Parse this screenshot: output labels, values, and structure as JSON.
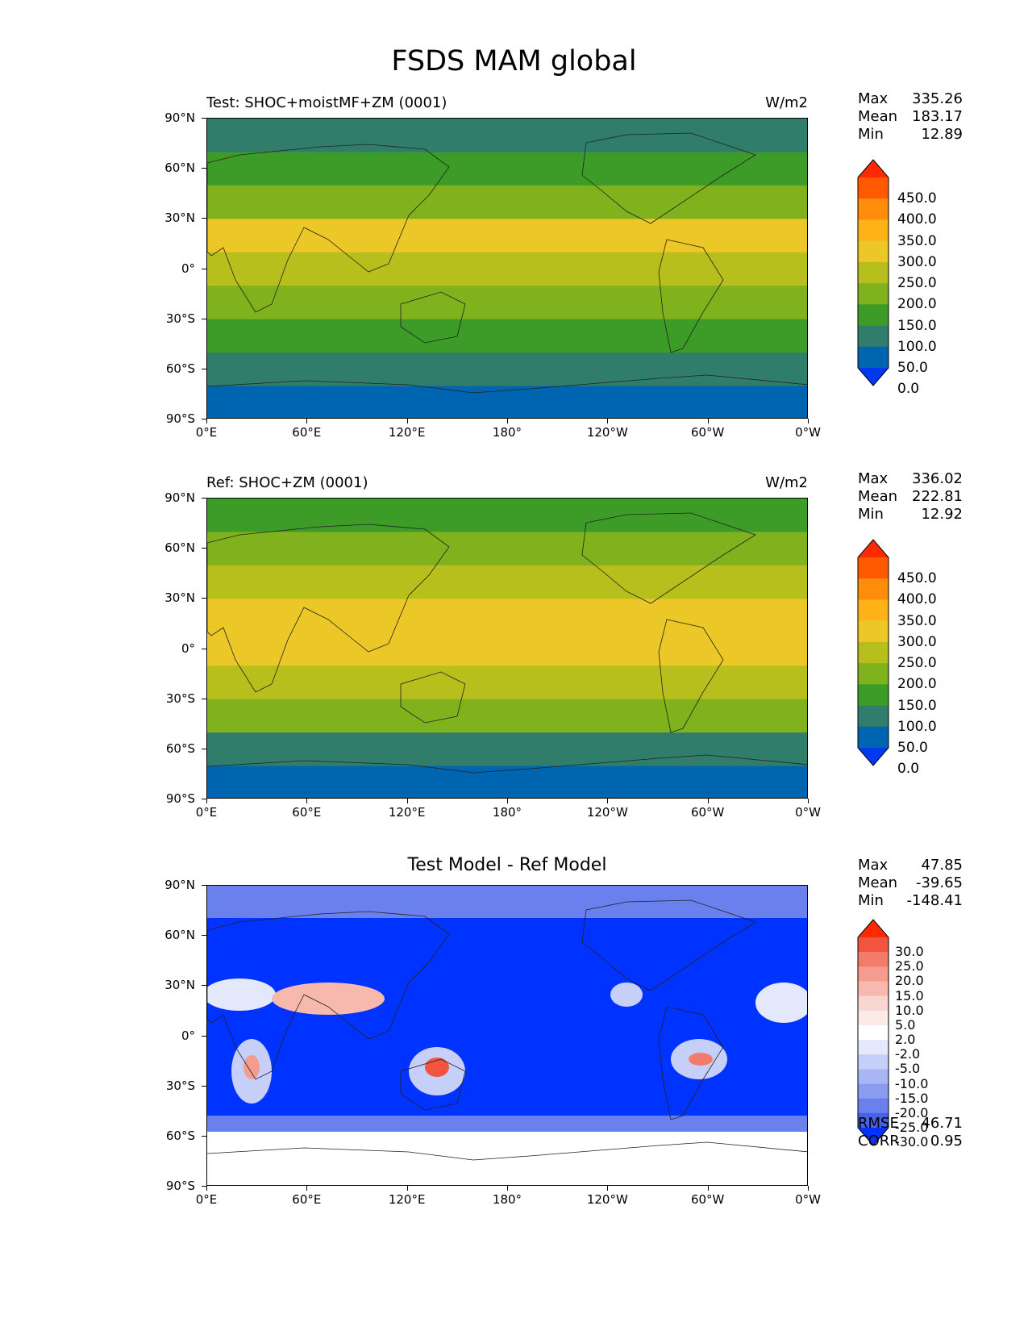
{
  "title": "FSDS MAM global",
  "axes": {
    "lat_ticks": [
      "90°N",
      "60°N",
      "30°N",
      "0°",
      "30°S",
      "60°S",
      "90°S"
    ],
    "lon_ticks": [
      "0°E",
      "60°E",
      "120°E",
      "180°",
      "120°W",
      "60°W",
      "0°W"
    ]
  },
  "panels": [
    {
      "title_left": "Test: SHOC+moistMF+ZM (0001)",
      "title_right": "W/m2",
      "stats": [
        {
          "label": "Max",
          "value": "335.26"
        },
        {
          "label": "Mean",
          "value": "183.17"
        },
        {
          "label": "Min",
          "value": "12.89"
        }
      ],
      "colorbar": {
        "levels": [
          "450.0",
          "400.0",
          "350.0",
          "300.0",
          "250.0",
          "200.0",
          "150.0",
          "100.0",
          "50.0",
          "0.0"
        ],
        "colors": [
          "#ff2a00",
          "#ff5a00",
          "#ff8c0a",
          "#ffb319",
          "#ebc827",
          "#b7bf1c",
          "#7fb21c",
          "#3d9c27",
          "#2f7d6a",
          "#0065b0",
          "#0038f0"
        ]
      },
      "bands": [
        "#2f7d6a",
        "#3d9c27",
        "#7fb21c",
        "#ebc827",
        "#b7bf1c",
        "#7fb21c",
        "#3d9c27",
        "#2f7d6a",
        "#0065b0"
      ]
    },
    {
      "title_left": "Ref: SHOC+ZM (0001)",
      "title_right": "W/m2",
      "stats": [
        {
          "label": "Max",
          "value": "336.02"
        },
        {
          "label": "Mean",
          "value": "222.81"
        },
        {
          "label": "Min",
          "value": "12.92"
        }
      ],
      "colorbar": {
        "levels": [
          "450.0",
          "400.0",
          "350.0",
          "300.0",
          "250.0",
          "200.0",
          "150.0",
          "100.0",
          "50.0",
          "0.0"
        ],
        "colors": [
          "#ff2a00",
          "#ff5a00",
          "#ff8c0a",
          "#ffb319",
          "#ebc827",
          "#b7bf1c",
          "#7fb21c",
          "#3d9c27",
          "#2f7d6a",
          "#0065b0",
          "#0038f0"
        ]
      },
      "bands": [
        "#3d9c27",
        "#7fb21c",
        "#b7bf1c",
        "#ebc827",
        "#ebc827",
        "#b7bf1c",
        "#7fb21c",
        "#2f7d6a",
        "#0065b0"
      ]
    },
    {
      "title_center": "Test Model - Ref Model",
      "stats": [
        {
          "label": "Max",
          "value": "47.85"
        },
        {
          "label": "Mean",
          "value": "-39.65"
        },
        {
          "label": "Min",
          "value": "-148.41"
        }
      ],
      "colorbar": {
        "levels": [
          "30.0",
          "25.0",
          "20.0",
          "15.0",
          "10.0",
          "5.0",
          "2.0",
          "-2.0",
          "-5.0",
          "-10.0",
          "-15.0",
          "-20.0",
          "-25.0",
          "-30.0"
        ],
        "colors": [
          "#ff2a00",
          "#f2543f",
          "#f47a6a",
          "#f69c8e",
          "#f7b9ae",
          "#f9d6cf",
          "#fbeae6",
          "#ffffff",
          "#e4e8fb",
          "#c6cff7",
          "#a9b6f4",
          "#8a9cf0",
          "#6a80ec",
          "#4662e9",
          "#0033ff"
        ]
      },
      "summary": [
        {
          "label": "RMSE",
          "value": "46.71"
        },
        {
          "label": "CORR",
          "value": "0.95"
        }
      ]
    }
  ]
}
